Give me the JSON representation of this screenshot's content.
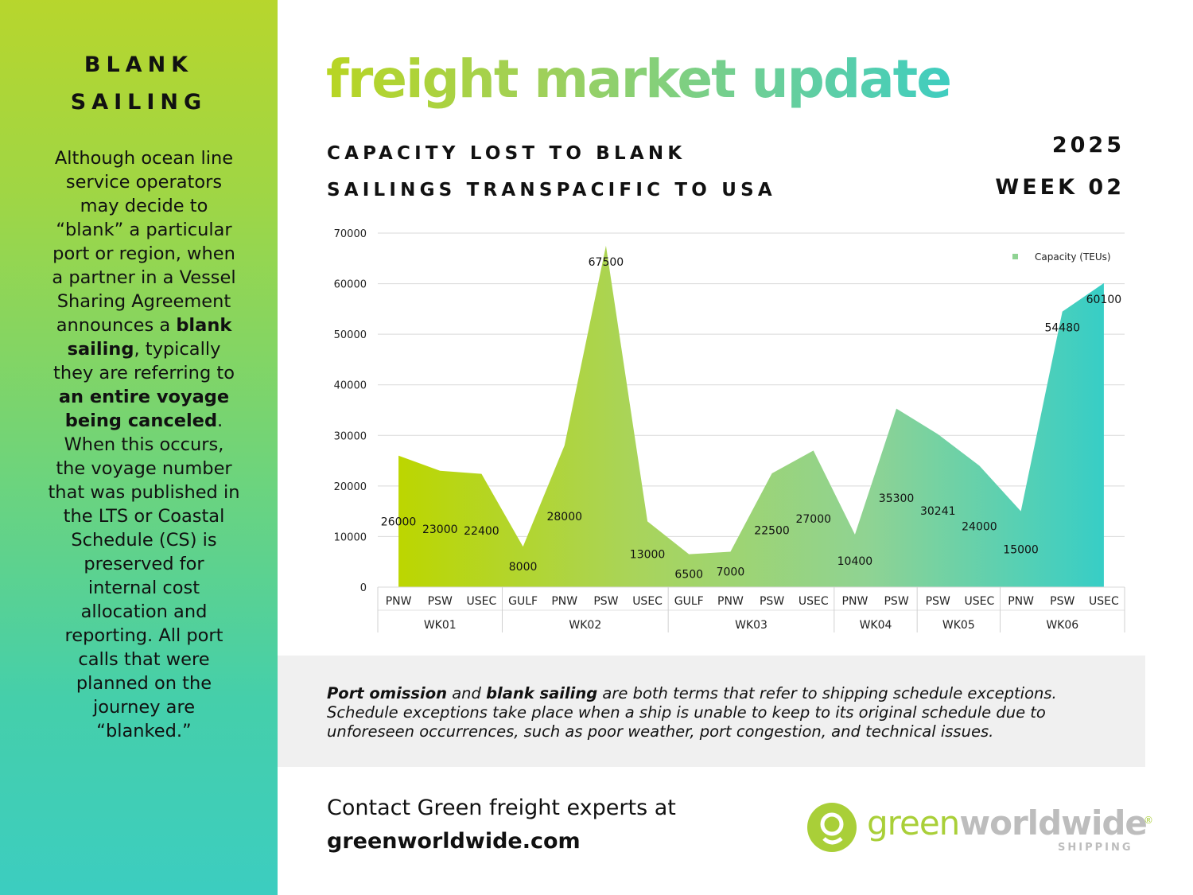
{
  "sidebar": {
    "title_line1": "BLANK",
    "title_line2": "SAILING",
    "body_parts": [
      {
        "text": "Although ocean line service operators may decide to “blank” a particular port or region, when a partner in a Vessel Sharing Agreement announces a ",
        "bold": false
      },
      {
        "text": "blank sailing",
        "bold": true
      },
      {
        "text": ", typically they are referring to ",
        "bold": false
      },
      {
        "text": "an entire voyage being canceled",
        "bold": true
      },
      {
        "text": ". When this occurs, the voyage number that was published in the LTS or Coastal Schedule (CS) is preserved for internal cost allocation and reporting. All port calls that were planned on the journey are “blanked.”",
        "bold": false
      }
    ]
  },
  "header": {
    "title": "freight market update",
    "subtitle_line1": "CAPACITY LOST TO BLANK",
    "subtitle_line2": "SAILINGS TRANSPACIFIC TO USA",
    "year": "2025",
    "week": "WEEK 02"
  },
  "chart_data": {
    "type": "area",
    "categories": [
      "PNW",
      "PSW",
      "USEC",
      "GULF",
      "PNW",
      "PSW",
      "USEC",
      "GULF",
      "PNW",
      "PSW",
      "USEC",
      "PNW",
      "PSW",
      "PSW",
      "USEC",
      "PNW",
      "PSW",
      "USEC"
    ],
    "groups": [
      {
        "label": "WK01",
        "count": 3
      },
      {
        "label": "WK02",
        "count": 4
      },
      {
        "label": "WK03",
        "count": 4
      },
      {
        "label": "WK04",
        "count": 2
      },
      {
        "label": "WK05",
        "count": 2
      },
      {
        "label": "WK06",
        "count": 3
      }
    ],
    "series": [
      {
        "name": "Capacity (TEUs)",
        "values": [
          26000,
          23000,
          22400,
          8000,
          28000,
          67500,
          13000,
          6500,
          7000,
          22500,
          27000,
          10400,
          35300,
          30241,
          24000,
          15000,
          54480,
          60100
        ]
      }
    ],
    "data_labels": [
      "26000",
      "23000",
      "22400",
      "8000",
      "28000",
      "67500",
      "13000",
      "6500",
      "7000",
      "22500",
      "27000",
      "10400",
      "35300",
      "30241",
      "24000",
      "15000",
      "54480",
      "60100"
    ],
    "y_ticks": [
      "0",
      "10000",
      "20000",
      "30000",
      "40000",
      "50000",
      "60000",
      "70000"
    ],
    "ylim": [
      0,
      70000
    ],
    "grid": true,
    "legend_position": "top-right",
    "gradient_colors": [
      "#bcd600",
      "#a9d45a",
      "#8fd393",
      "#37cec6"
    ]
  },
  "note": {
    "parts": [
      {
        "text": "Port omission",
        "bold": true
      },
      {
        "text": " and ",
        "bold": false
      },
      {
        "text": "blank sailing",
        "bold": true
      },
      {
        "text": " are both terms that refer to shipping schedule exceptions. Schedule exceptions take place when a ship is unable to keep to its original schedule due to unforeseen occurrences, such as poor weather, port congestion, and technical issues.",
        "bold": false
      }
    ]
  },
  "contact": {
    "line1": "Contact Green freight experts at",
    "line2": "greenworldwide.com"
  },
  "logo": {
    "word1": "green",
    "word2": "worldwide",
    "registered": "®",
    "tagline": "SHIPPING"
  }
}
